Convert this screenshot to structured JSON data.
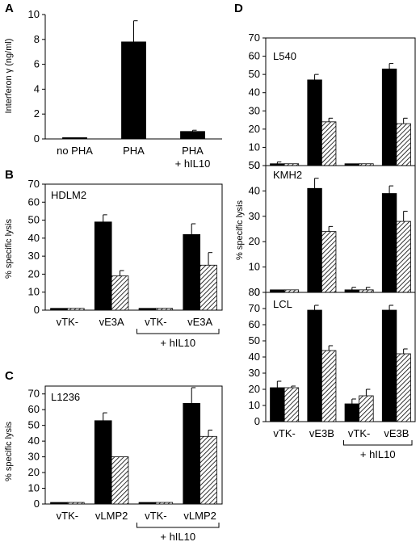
{
  "chart_data": [
    {
      "id": "A",
      "type": "bar",
      "panel_label": "A",
      "ylabel": "Interferon γ (ng/ml)",
      "ylim": [
        0,
        10
      ],
      "yticks": [
        0,
        2,
        4,
        6,
        8,
        10
      ],
      "categories": [
        [
          "no PHA"
        ],
        [
          "PHA"
        ],
        [
          "PHA",
          "+ hIL10"
        ]
      ],
      "series": [
        {
          "fill": "solid",
          "values": [
            0.1,
            7.8,
            0.6
          ],
          "errors": [
            0.0,
            1.7,
            0.1
          ]
        }
      ],
      "groups": []
    },
    {
      "id": "B",
      "type": "bar",
      "panel_label": "B",
      "inset_label": "HDLM2",
      "ylabel": "% specific lysis",
      "ylim": [
        0,
        70
      ],
      "yticks": [
        0,
        10,
        20,
        30,
        40,
        50,
        60,
        70
      ],
      "categories": [
        "vTK-",
        "vE3A",
        "vTK-",
        "vE3A"
      ],
      "series": [
        {
          "fill": "solid",
          "values": [
            1,
            49,
            1,
            42
          ],
          "errors": [
            0,
            4,
            0,
            6
          ]
        },
        {
          "fill": "hatched",
          "values": [
            1,
            19,
            1,
            25
          ],
          "errors": [
            0,
            3,
            0,
            7
          ]
        }
      ],
      "groups": [
        {
          "label": "+ hIL10",
          "from": 2,
          "to": 3
        }
      ]
    },
    {
      "id": "C",
      "type": "bar",
      "panel_label": "C",
      "inset_label": "L1236",
      "ylabel": "% specific lysis",
      "ylim": [
        0,
        75
      ],
      "yticks": [
        0,
        10,
        20,
        30,
        40,
        50,
        60,
        70
      ],
      "categories": [
        "vTK-",
        "vLMP2",
        "vTK-",
        "vLMP2"
      ],
      "series": [
        {
          "fill": "solid",
          "values": [
            1,
            53,
            1,
            64
          ],
          "errors": [
            0,
            5,
            0,
            10
          ]
        },
        {
          "fill": "hatched",
          "values": [
            1,
            30,
            1,
            43
          ],
          "errors": [
            0,
            0,
            0,
            4
          ]
        }
      ],
      "groups": [
        {
          "label": "+ hIL10",
          "from": 2,
          "to": 3
        }
      ]
    },
    {
      "id": "D",
      "type": "bar",
      "panel_label": "D",
      "ylabel": "% specific lysis",
      "categories": [
        "vTK-",
        "vE3B",
        "vTK-",
        "vE3B"
      ],
      "groups": [
        {
          "label": "+ hIL10",
          "from": 2,
          "to": 3
        }
      ],
      "subpanels": [
        {
          "inset_label": "L540",
          "ylim": [
            0,
            70
          ],
          "yticks": [
            0,
            10,
            20,
            30,
            40,
            50,
            60,
            70
          ],
          "series": [
            {
              "fill": "solid",
              "values": [
                1,
                47,
                1,
                53
              ],
              "errors": [
                1,
                3,
                0,
                3
              ]
            },
            {
              "fill": "hatched",
              "values": [
                1,
                24,
                1,
                23
              ],
              "errors": [
                0,
                2,
                0,
                3
              ]
            }
          ]
        },
        {
          "inset_label": "KMH2",
          "ylim": [
            0,
            50
          ],
          "yticks": [
            0,
            10,
            20,
            30,
            40,
            50
          ],
          "series": [
            {
              "fill": "solid",
              "values": [
                1,
                41,
                1,
                39
              ],
              "errors": [
                0,
                4,
                1,
                3
              ]
            },
            {
              "fill": "hatched",
              "values": [
                1,
                24,
                1,
                28
              ],
              "errors": [
                0,
                2,
                1,
                4
              ]
            }
          ]
        },
        {
          "inset_label": "LCL",
          "ylim": [
            0,
            80
          ],
          "yticks": [
            0,
            10,
            20,
            30,
            40,
            50,
            60,
            70,
            80
          ],
          "series": [
            {
              "fill": "solid",
              "values": [
                21,
                69,
                11,
                69
              ],
              "errors": [
                4,
                3,
                3,
                3
              ]
            },
            {
              "fill": "hatched",
              "values": [
                21,
                44,
                16,
                42
              ],
              "errors": [
                1,
                3,
                4,
                3
              ]
            }
          ]
        }
      ]
    }
  ]
}
